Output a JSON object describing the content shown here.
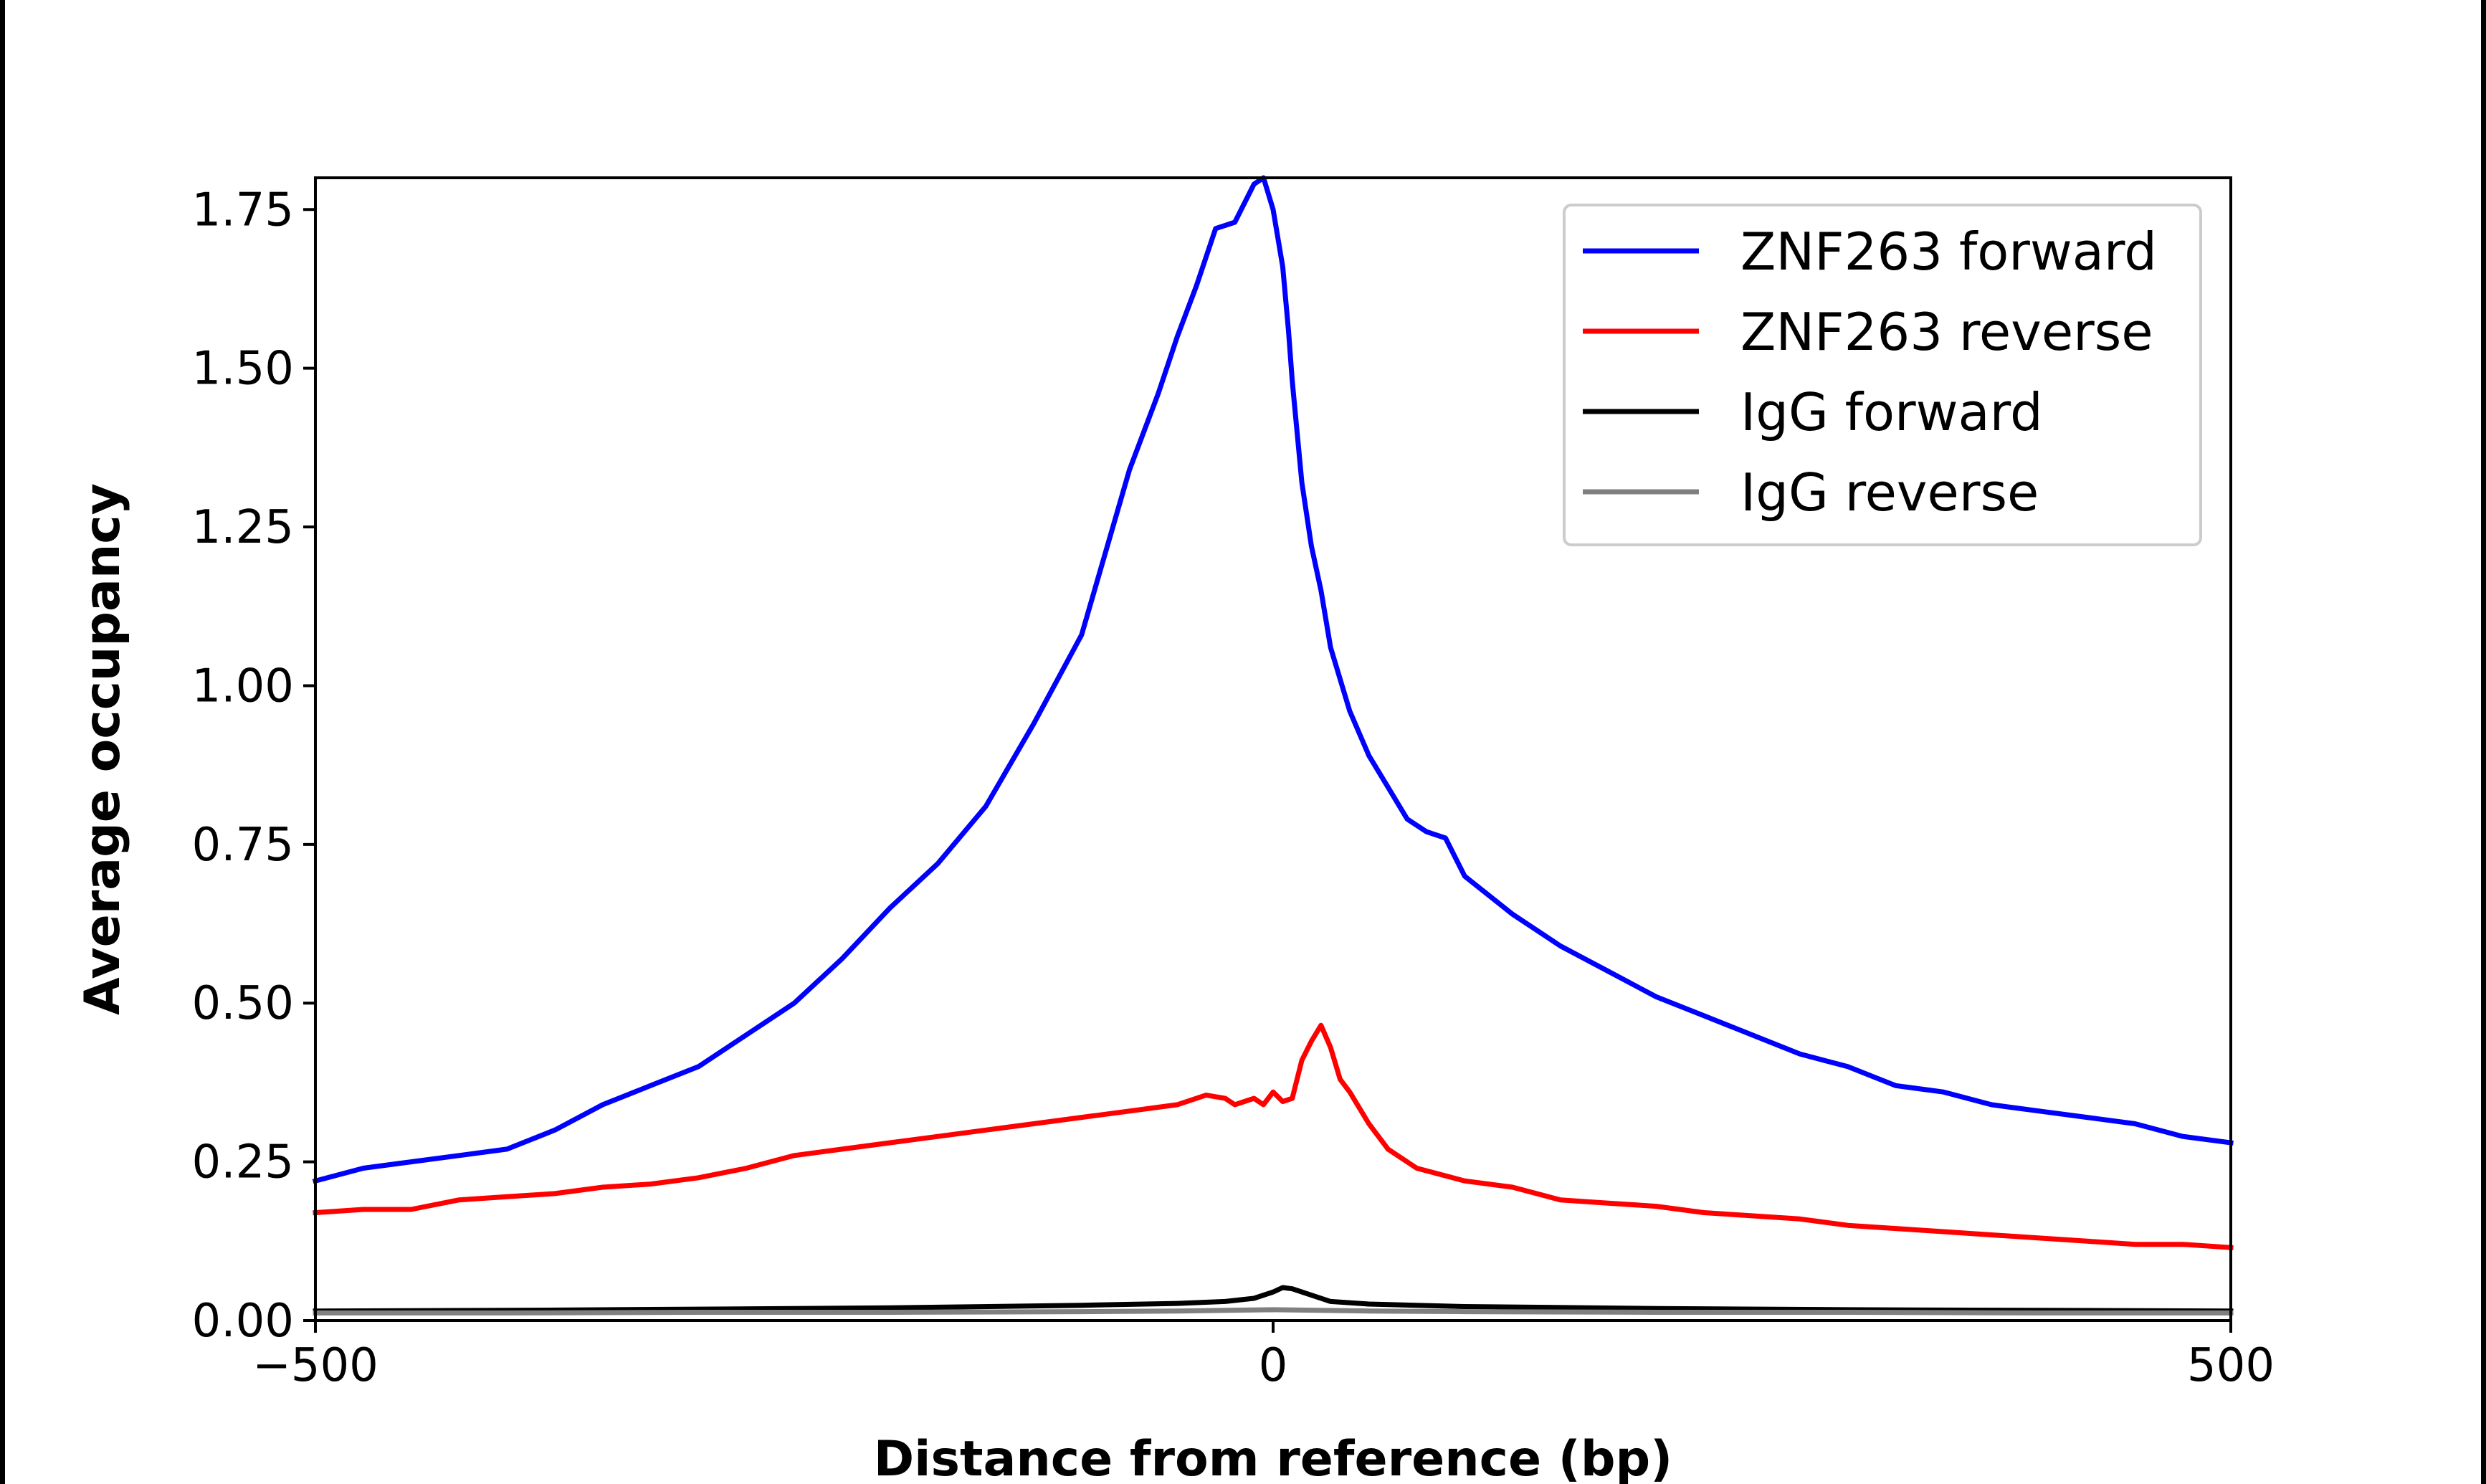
{
  "chart_data": {
    "type": "line",
    "title": "",
    "xlabel": "Distance from reference (bp)",
    "ylabel": "Average occupancy",
    "xlim": [
      -500,
      500
    ],
    "ylim": [
      0,
      1.8
    ],
    "xticks": [
      -500,
      0,
      500
    ],
    "xtick_labels": [
      "−500",
      "0",
      "500"
    ],
    "yticks": [
      0,
      0.25,
      0.5,
      0.75,
      1.0,
      1.25,
      1.5,
      1.75
    ],
    "ytick_labels": [
      "0.00",
      "0.25",
      "0.50",
      "0.75",
      "1.00",
      "1.25",
      "1.50",
      "1.75"
    ],
    "grid": false,
    "legend_position": "top-right",
    "series": [
      {
        "name": "ZNF263 forward",
        "color": "#0000ff",
        "x": [
          -500,
          -475,
          -450,
          -425,
          -400,
          -375,
          -350,
          -325,
          -300,
          -275,
          -250,
          -225,
          -200,
          -175,
          -150,
          -125,
          -100,
          -75,
          -60,
          -50,
          -40,
          -30,
          -20,
          -10,
          -5,
          0,
          5,
          8,
          10,
          15,
          20,
          25,
          30,
          40,
          50,
          60,
          70,
          80,
          90,
          100,
          125,
          150,
          175,
          200,
          225,
          250,
          275,
          300,
          325,
          350,
          375,
          400,
          425,
          450,
          475,
          500
        ],
        "y": [
          0.22,
          0.24,
          0.25,
          0.26,
          0.27,
          0.3,
          0.34,
          0.37,
          0.4,
          0.45,
          0.5,
          0.57,
          0.65,
          0.72,
          0.81,
          0.94,
          1.08,
          1.34,
          1.46,
          1.55,
          1.63,
          1.72,
          1.73,
          1.79,
          1.8,
          1.75,
          1.66,
          1.56,
          1.48,
          1.32,
          1.22,
          1.15,
          1.06,
          0.96,
          0.89,
          0.84,
          0.79,
          0.77,
          0.76,
          0.7,
          0.64,
          0.59,
          0.55,
          0.51,
          0.48,
          0.45,
          0.42,
          0.4,
          0.37,
          0.36,
          0.34,
          0.33,
          0.32,
          0.31,
          0.29,
          0.28
        ]
      },
      {
        "name": "ZNF263 reverse",
        "color": "#ff0000",
        "x": [
          -500,
          -475,
          -450,
          -425,
          -400,
          -375,
          -350,
          -325,
          -300,
          -275,
          -250,
          -225,
          -200,
          -175,
          -150,
          -125,
          -100,
          -75,
          -50,
          -35,
          -25,
          -20,
          -15,
          -10,
          -5,
          0,
          5,
          10,
          15,
          20,
          25,
          30,
          35,
          40,
          50,
          60,
          75,
          100,
          125,
          150,
          175,
          200,
          225,
          250,
          275,
          300,
          325,
          350,
          375,
          400,
          425,
          450,
          475,
          500
        ],
        "y": [
          0.17,
          0.175,
          0.175,
          0.19,
          0.195,
          0.2,
          0.21,
          0.215,
          0.225,
          0.24,
          0.26,
          0.27,
          0.28,
          0.29,
          0.3,
          0.31,
          0.32,
          0.33,
          0.34,
          0.355,
          0.35,
          0.34,
          0.345,
          0.35,
          0.34,
          0.36,
          0.345,
          0.35,
          0.41,
          0.44,
          0.465,
          0.43,
          0.38,
          0.36,
          0.31,
          0.27,
          0.24,
          0.22,
          0.21,
          0.19,
          0.185,
          0.18,
          0.17,
          0.165,
          0.16,
          0.15,
          0.145,
          0.14,
          0.135,
          0.13,
          0.125,
          0.12,
          0.12,
          0.115
        ]
      },
      {
        "name": "IgG forward",
        "color": "#000000",
        "x": [
          -500,
          -400,
          -300,
          -200,
          -100,
          -50,
          -25,
          -10,
          0,
          5,
          10,
          20,
          30,
          50,
          100,
          200,
          300,
          400,
          500
        ],
        "y": [
          0.015,
          0.016,
          0.018,
          0.02,
          0.024,
          0.027,
          0.03,
          0.035,
          0.045,
          0.052,
          0.05,
          0.04,
          0.03,
          0.026,
          0.022,
          0.019,
          0.017,
          0.016,
          0.015
        ]
      },
      {
        "name": "IgG reverse",
        "color": "#808080",
        "x": [
          -500,
          -400,
          -300,
          -200,
          -100,
          -50,
          -25,
          0,
          25,
          50,
          100,
          200,
          300,
          400,
          500
        ],
        "y": [
          0.012,
          0.012,
          0.013,
          0.013,
          0.014,
          0.015,
          0.016,
          0.017,
          0.016,
          0.015,
          0.014,
          0.013,
          0.013,
          0.012,
          0.012
        ]
      }
    ]
  }
}
